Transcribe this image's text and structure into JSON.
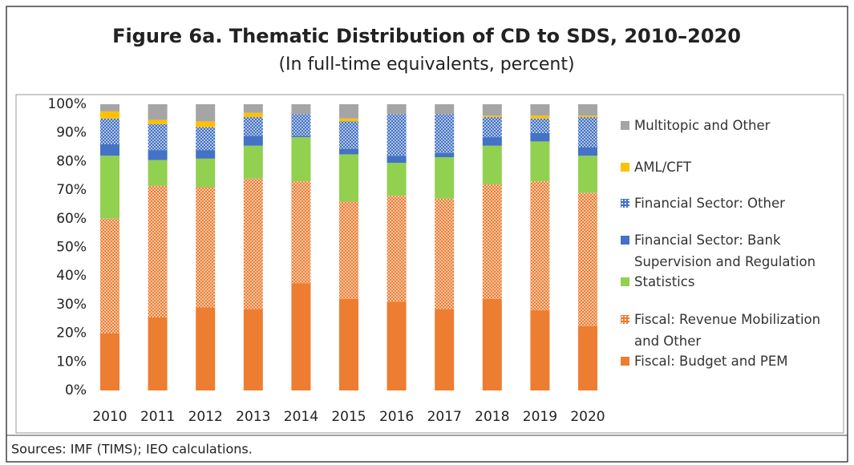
{
  "chart_data": {
    "type": "stacked_bar",
    "title": "Figure 6a. Thematic Distribution of CD to SDS, 2010–2020",
    "subtitle": "(In full-time equivalents, percent)",
    "source": "Sources: IMF (TIMS); IEO calculations.",
    "categories": [
      "2010",
      "2011",
      "2012",
      "2013",
      "2014",
      "2015",
      "2016",
      "2017",
      "2018",
      "2019",
      "2020"
    ],
    "series": [
      {
        "name": "Fiscal: Budget and PEM",
        "color": "#ed7d31",
        "values": [
          20,
          25.5,
          29,
          28.5,
          37.5,
          32,
          31,
          28.5,
          32,
          28,
          22.5
        ]
      },
      {
        "name": "Fiscal: Revenue Mobilization and Other",
        "color": "#ed7d31",
        "pattern": "dots",
        "values": [
          40,
          46,
          42,
          45.5,
          35.5,
          34,
          37,
          38.5,
          40,
          45,
          46.5
        ]
      },
      {
        "name": "Statistics",
        "color": "#92d050",
        "values": [
          22,
          9,
          10,
          11.5,
          15.5,
          16.5,
          11.5,
          14.5,
          13.5,
          14,
          13
        ]
      },
      {
        "name": "Financial Sector: Bank Supervision and Regulation",
        "color": "#4472c4",
        "values": [
          4,
          3.5,
          3,
          3.5,
          0.5,
          2,
          2.5,
          1.5,
          3,
          3,
          3
        ]
      },
      {
        "name": "Financial Sector: Other",
        "color": "#4472c4",
        "pattern": "dots",
        "values": [
          9,
          9,
          8,
          6.5,
          7.5,
          9.5,
          14.5,
          13.5,
          7,
          5,
          10.5
        ]
      },
      {
        "name": "AML/CFT",
        "color": "#ffc000",
        "values": [
          2.5,
          1.5,
          2,
          1.5,
          0,
          1,
          0,
          0,
          0.5,
          1,
          0.5
        ]
      },
      {
        "name": "Multitopic and Other",
        "color": "#a5a5a5",
        "values": [
          2.5,
          5.5,
          6,
          3,
          3.5,
          5,
          3.5,
          3.5,
          4,
          4,
          4
        ]
      }
    ],
    "ylim": [
      0,
      100
    ],
    "yticks": [
      {
        "value": 0,
        "label": "0%"
      },
      {
        "value": 10,
        "label": "10%"
      },
      {
        "value": 20,
        "label": "20%"
      },
      {
        "value": 30,
        "label": "30%"
      },
      {
        "value": 40,
        "label": "40%"
      },
      {
        "value": 50,
        "label": "50%"
      },
      {
        "value": 60,
        "label": "60%"
      },
      {
        "value": 70,
        "label": "70%"
      },
      {
        "value": 80,
        "label": "80%"
      },
      {
        "value": 90,
        "label": "90%"
      },
      {
        "value": 100,
        "label": "100%"
      }
    ],
    "legend": "right"
  }
}
